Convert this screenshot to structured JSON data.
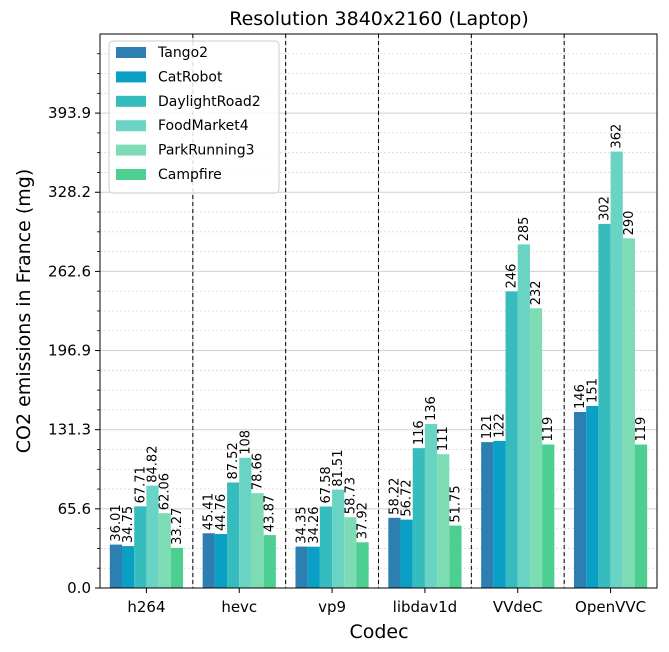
{
  "chart_data": {
    "type": "bar",
    "title": "Resolution 3840x2160 (Laptop)",
    "xlabel": "Codec",
    "ylabel": "CO2 emissions in France (mg)",
    "categories": [
      "h264",
      "hevc",
      "vp9",
      "libdav1d",
      "VVdeC",
      "OpenVVC"
    ],
    "yticks": [
      "0.0",
      "65.6",
      "131.3",
      "196.9",
      "262.6",
      "328.2",
      "393.9"
    ],
    "ylim": [
      0,
      459.5
    ],
    "grid": true,
    "legend_position": "top-left",
    "series": [
      {
        "name": "Tango2",
        "color": "#2c7fb0",
        "values": [
          36.01,
          45.41,
          34.35,
          58.22,
          121,
          146
        ],
        "labels": [
          "36.01",
          "45.41",
          "34.35",
          "58.22",
          "121",
          "146"
        ]
      },
      {
        "name": "CatRobot",
        "color": "#0aa0c6",
        "values": [
          34.75,
          44.76,
          34.26,
          56.72,
          122,
          151
        ],
        "labels": [
          "34.75",
          "44.76",
          "34.26",
          "56.72",
          "122",
          "151"
        ]
      },
      {
        "name": "DaylightRoad2",
        "color": "#36bcbc",
        "values": [
          67.71,
          87.52,
          67.58,
          116,
          246,
          302
        ],
        "labels": [
          "67.71",
          "87.52",
          "67.58",
          "116",
          "246",
          "302"
        ]
      },
      {
        "name": "FoodMarket4",
        "color": "#6ad4c4",
        "values": [
          84.82,
          108,
          81.51,
          136,
          285,
          362
        ],
        "labels": [
          "84.82",
          "108",
          "81.51",
          "136",
          "285",
          "362"
        ]
      },
      {
        "name": "ParkRunning3",
        "color": "#7ddcb4",
        "values": [
          62.06,
          78.66,
          58.73,
          111,
          232,
          290
        ],
        "labels": [
          "62.06",
          "78.66",
          "58.73",
          "111",
          "232",
          "290"
        ]
      },
      {
        "name": "Campfire",
        "color": "#4ccf90",
        "values": [
          33.27,
          43.87,
          37.92,
          51.75,
          119,
          119
        ],
        "labels": [
          "33.27",
          "43.87",
          "37.92",
          "51.75",
          "119",
          "119"
        ]
      }
    ]
  }
}
